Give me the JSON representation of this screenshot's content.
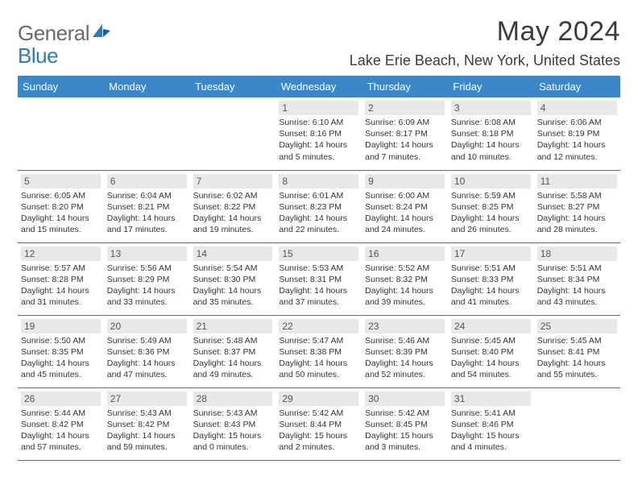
{
  "logo": {
    "part1": "General",
    "part2": "Blue"
  },
  "title": "May 2024",
  "location": "Lake Erie Beach, New York, United States",
  "header_bg": "#3b87c8",
  "header_fg": "#ffffff",
  "weekdays": [
    "Sunday",
    "Monday",
    "Tuesday",
    "Wednesday",
    "Thursday",
    "Friday",
    "Saturday"
  ],
  "weeks": [
    [
      null,
      null,
      null,
      {
        "n": "1",
        "sr": "Sunrise: 6:10 AM",
        "ss": "Sunset: 8:16 PM",
        "d1": "Daylight: 14 hours",
        "d2": "and 5 minutes."
      },
      {
        "n": "2",
        "sr": "Sunrise: 6:09 AM",
        "ss": "Sunset: 8:17 PM",
        "d1": "Daylight: 14 hours",
        "d2": "and 7 minutes."
      },
      {
        "n": "3",
        "sr": "Sunrise: 6:08 AM",
        "ss": "Sunset: 8:18 PM",
        "d1": "Daylight: 14 hours",
        "d2": "and 10 minutes."
      },
      {
        "n": "4",
        "sr": "Sunrise: 6:06 AM",
        "ss": "Sunset: 8:19 PM",
        "d1": "Daylight: 14 hours",
        "d2": "and 12 minutes."
      }
    ],
    [
      {
        "n": "5",
        "sr": "Sunrise: 6:05 AM",
        "ss": "Sunset: 8:20 PM",
        "d1": "Daylight: 14 hours",
        "d2": "and 15 minutes."
      },
      {
        "n": "6",
        "sr": "Sunrise: 6:04 AM",
        "ss": "Sunset: 8:21 PM",
        "d1": "Daylight: 14 hours",
        "d2": "and 17 minutes."
      },
      {
        "n": "7",
        "sr": "Sunrise: 6:02 AM",
        "ss": "Sunset: 8:22 PM",
        "d1": "Daylight: 14 hours",
        "d2": "and 19 minutes."
      },
      {
        "n": "8",
        "sr": "Sunrise: 6:01 AM",
        "ss": "Sunset: 8:23 PM",
        "d1": "Daylight: 14 hours",
        "d2": "and 22 minutes."
      },
      {
        "n": "9",
        "sr": "Sunrise: 6:00 AM",
        "ss": "Sunset: 8:24 PM",
        "d1": "Daylight: 14 hours",
        "d2": "and 24 minutes."
      },
      {
        "n": "10",
        "sr": "Sunrise: 5:59 AM",
        "ss": "Sunset: 8:25 PM",
        "d1": "Daylight: 14 hours",
        "d2": "and 26 minutes."
      },
      {
        "n": "11",
        "sr": "Sunrise: 5:58 AM",
        "ss": "Sunset: 8:27 PM",
        "d1": "Daylight: 14 hours",
        "d2": "and 28 minutes."
      }
    ],
    [
      {
        "n": "12",
        "sr": "Sunrise: 5:57 AM",
        "ss": "Sunset: 8:28 PM",
        "d1": "Daylight: 14 hours",
        "d2": "and 31 minutes."
      },
      {
        "n": "13",
        "sr": "Sunrise: 5:56 AM",
        "ss": "Sunset: 8:29 PM",
        "d1": "Daylight: 14 hours",
        "d2": "and 33 minutes."
      },
      {
        "n": "14",
        "sr": "Sunrise: 5:54 AM",
        "ss": "Sunset: 8:30 PM",
        "d1": "Daylight: 14 hours",
        "d2": "and 35 minutes."
      },
      {
        "n": "15",
        "sr": "Sunrise: 5:53 AM",
        "ss": "Sunset: 8:31 PM",
        "d1": "Daylight: 14 hours",
        "d2": "and 37 minutes."
      },
      {
        "n": "16",
        "sr": "Sunrise: 5:52 AM",
        "ss": "Sunset: 8:32 PM",
        "d1": "Daylight: 14 hours",
        "d2": "and 39 minutes."
      },
      {
        "n": "17",
        "sr": "Sunrise: 5:51 AM",
        "ss": "Sunset: 8:33 PM",
        "d1": "Daylight: 14 hours",
        "d2": "and 41 minutes."
      },
      {
        "n": "18",
        "sr": "Sunrise: 5:51 AM",
        "ss": "Sunset: 8:34 PM",
        "d1": "Daylight: 14 hours",
        "d2": "and 43 minutes."
      }
    ],
    [
      {
        "n": "19",
        "sr": "Sunrise: 5:50 AM",
        "ss": "Sunset: 8:35 PM",
        "d1": "Daylight: 14 hours",
        "d2": "and 45 minutes."
      },
      {
        "n": "20",
        "sr": "Sunrise: 5:49 AM",
        "ss": "Sunset: 8:36 PM",
        "d1": "Daylight: 14 hours",
        "d2": "and 47 minutes."
      },
      {
        "n": "21",
        "sr": "Sunrise: 5:48 AM",
        "ss": "Sunset: 8:37 PM",
        "d1": "Daylight: 14 hours",
        "d2": "and 49 minutes."
      },
      {
        "n": "22",
        "sr": "Sunrise: 5:47 AM",
        "ss": "Sunset: 8:38 PM",
        "d1": "Daylight: 14 hours",
        "d2": "and 50 minutes."
      },
      {
        "n": "23",
        "sr": "Sunrise: 5:46 AM",
        "ss": "Sunset: 8:39 PM",
        "d1": "Daylight: 14 hours",
        "d2": "and 52 minutes."
      },
      {
        "n": "24",
        "sr": "Sunrise: 5:45 AM",
        "ss": "Sunset: 8:40 PM",
        "d1": "Daylight: 14 hours",
        "d2": "and 54 minutes."
      },
      {
        "n": "25",
        "sr": "Sunrise: 5:45 AM",
        "ss": "Sunset: 8:41 PM",
        "d1": "Daylight: 14 hours",
        "d2": "and 55 minutes."
      }
    ],
    [
      {
        "n": "26",
        "sr": "Sunrise: 5:44 AM",
        "ss": "Sunset: 8:42 PM",
        "d1": "Daylight: 14 hours",
        "d2": "and 57 minutes."
      },
      {
        "n": "27",
        "sr": "Sunrise: 5:43 AM",
        "ss": "Sunset: 8:42 PM",
        "d1": "Daylight: 14 hours",
        "d2": "and 59 minutes."
      },
      {
        "n": "28",
        "sr": "Sunrise: 5:43 AM",
        "ss": "Sunset: 8:43 PM",
        "d1": "Daylight: 15 hours",
        "d2": "and 0 minutes."
      },
      {
        "n": "29",
        "sr": "Sunrise: 5:42 AM",
        "ss": "Sunset: 8:44 PM",
        "d1": "Daylight: 15 hours",
        "d2": "and 2 minutes."
      },
      {
        "n": "30",
        "sr": "Sunrise: 5:42 AM",
        "ss": "Sunset: 8:45 PM",
        "d1": "Daylight: 15 hours",
        "d2": "and 3 minutes."
      },
      {
        "n": "31",
        "sr": "Sunrise: 5:41 AM",
        "ss": "Sunset: 8:46 PM",
        "d1": "Daylight: 15 hours",
        "d2": "and 4 minutes."
      },
      null
    ]
  ]
}
